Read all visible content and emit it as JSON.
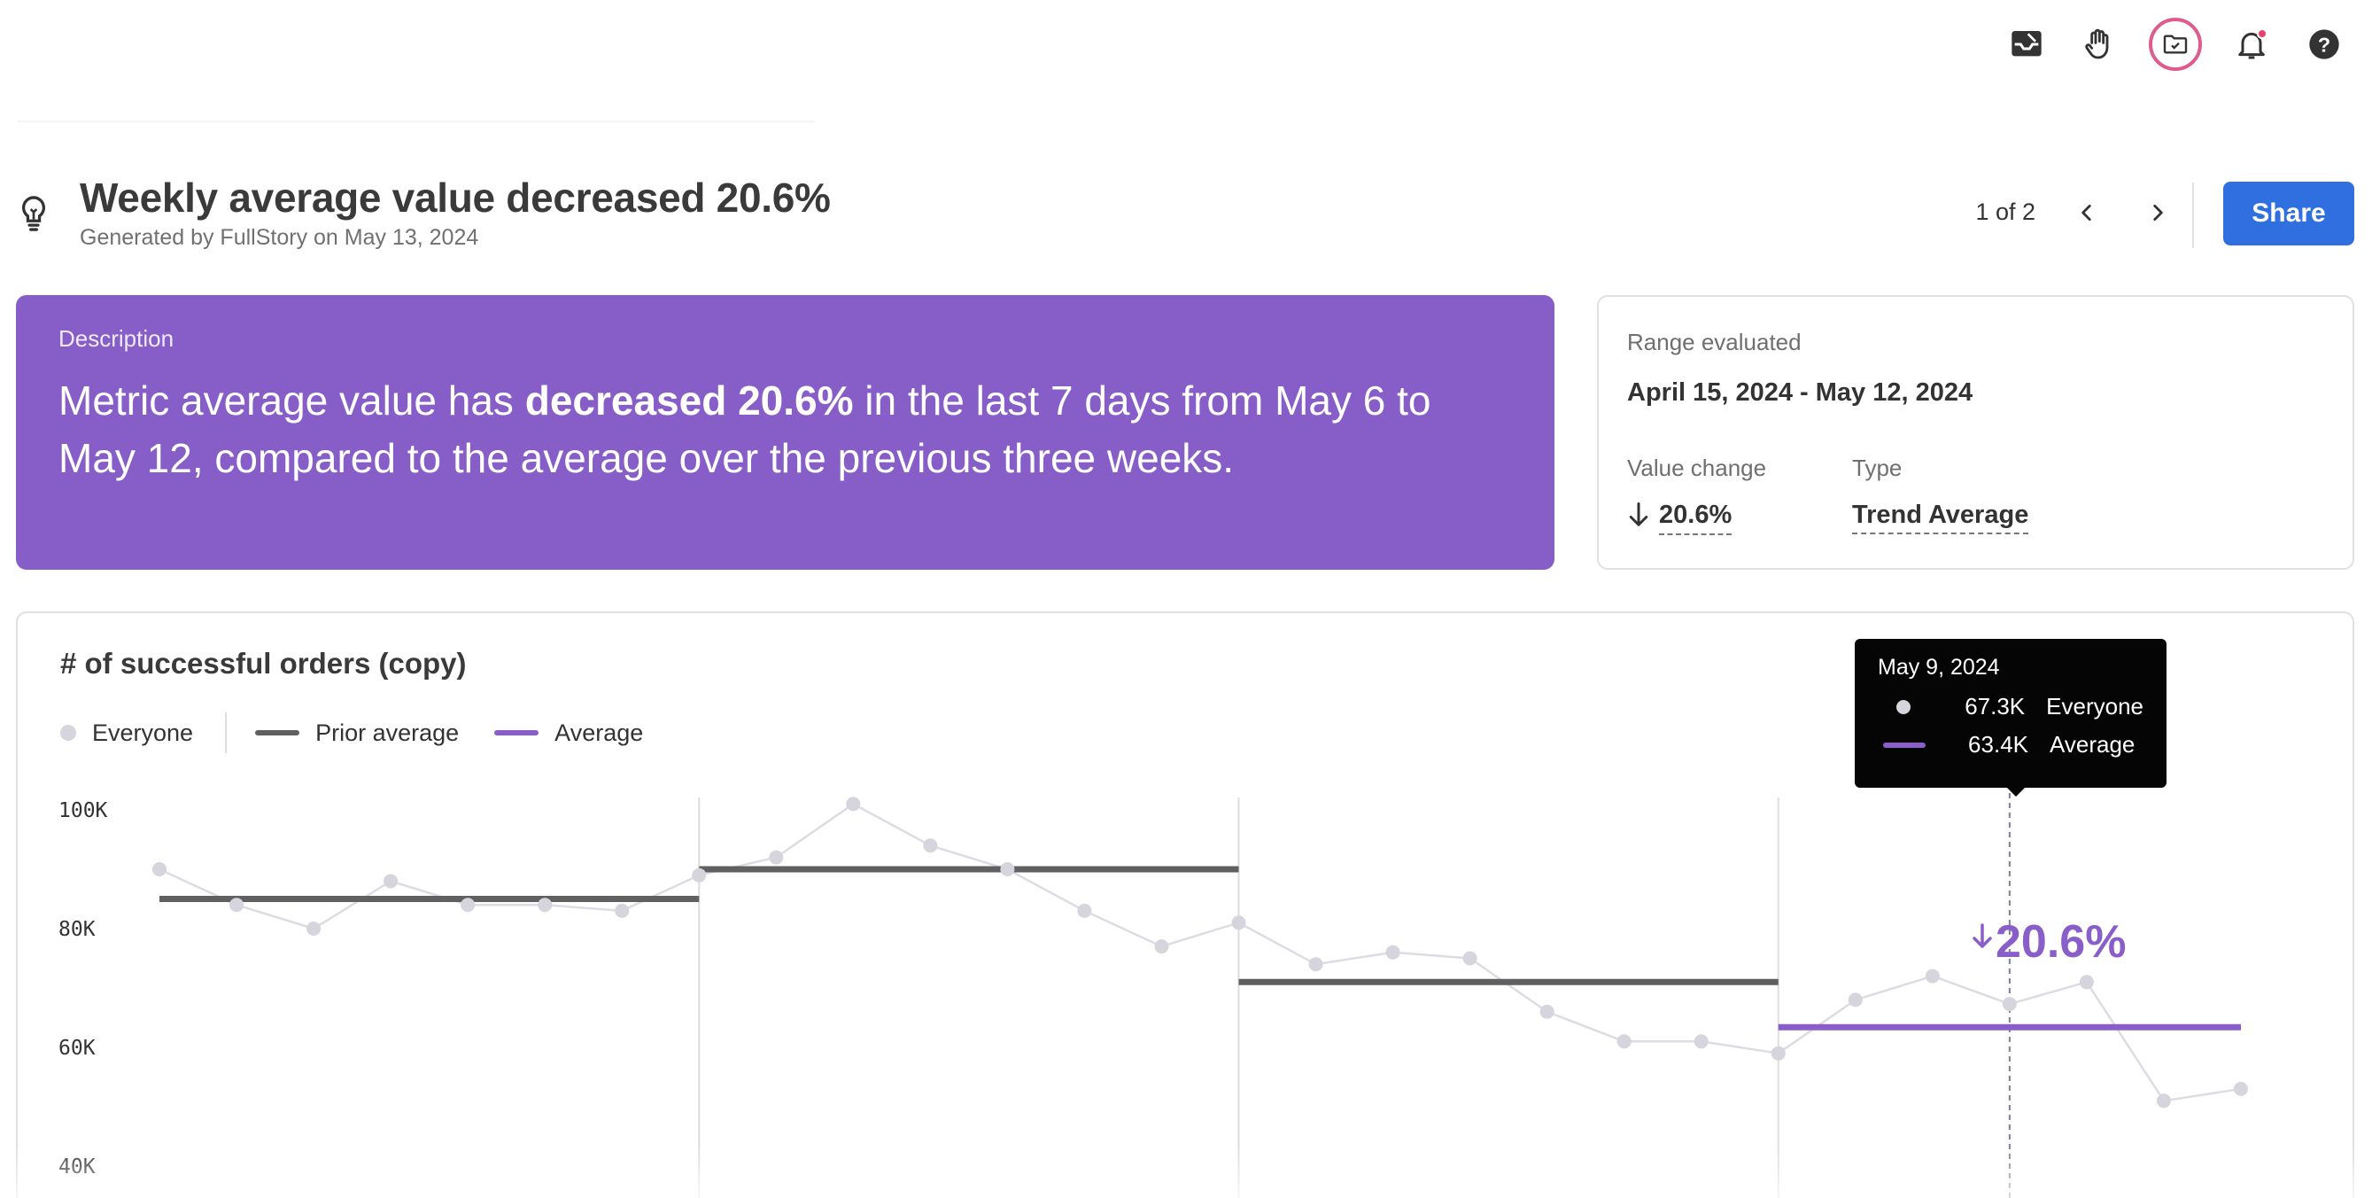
{
  "toolbar": {
    "icons": [
      "inbox-icon",
      "hand-icon",
      "folder-check-icon",
      "bell-icon",
      "help-icon"
    ],
    "active_icon": "folder-check-icon"
  },
  "header": {
    "title": "Weekly average value decreased 20.6%",
    "subtitle": "Generated by FullStory on May 13, 2024",
    "pager": "1 of 2",
    "share_label": "Share"
  },
  "description": {
    "label": "Description",
    "text_before": "Metric average value has ",
    "text_bold": "decreased 20.6%",
    "text_after": " in the last 7 days from May 6 to May 12, compared to the average over the previous three weeks."
  },
  "range": {
    "label": "Range evaluated",
    "value": "April 15, 2024 - May 12, 2024",
    "value_change_label": "Value change",
    "value_change": "20.6%",
    "type_label": "Type",
    "type_value": "Trend Average"
  },
  "colors": {
    "accent": "#875ec7",
    "share": "#2f6fdf",
    "prior_average": "#606060",
    "average": "#8a5ec9",
    "everyone": "#d6d4dc"
  },
  "chart_data": {
    "type": "line",
    "title": "# of successful orders (copy)",
    "legend": [
      "Everyone",
      "Prior average",
      "Average"
    ],
    "y_ticks": [
      "100K",
      "80K",
      "60K",
      "40K"
    ],
    "y_tick_values": [
      100000,
      80000,
      60000,
      40000
    ],
    "ylim": [
      40000,
      100000
    ],
    "series": [
      {
        "name": "Everyone",
        "values": [
          90000,
          84000,
          80000,
          88000,
          84000,
          84000,
          83000,
          89000,
          92000,
          101000,
          94000,
          90000,
          83000,
          77000,
          81000,
          74000,
          76000,
          75000,
          66000,
          61000,
          61000,
          59000,
          68000,
          72000,
          67300,
          71000,
          51000,
          53000
        ]
      }
    ],
    "prior_average_segments": [
      {
        "start": 0,
        "end": 7,
        "value": 85000
      },
      {
        "start": 7,
        "end": 14,
        "value": 90000
      },
      {
        "start": 14,
        "end": 21,
        "value": 71000
      }
    ],
    "average_segment": {
      "start": 21,
      "end": 27,
      "value": 63400
    },
    "week_boundaries": [
      7,
      14,
      21
    ],
    "delta_label": "20.6%",
    "tooltip": {
      "index": 24,
      "date": "May 9, 2024",
      "rows": [
        {
          "value": "67.3K",
          "label": "Everyone"
        },
        {
          "value": "63.4K",
          "label": "Average"
        }
      ]
    }
  }
}
